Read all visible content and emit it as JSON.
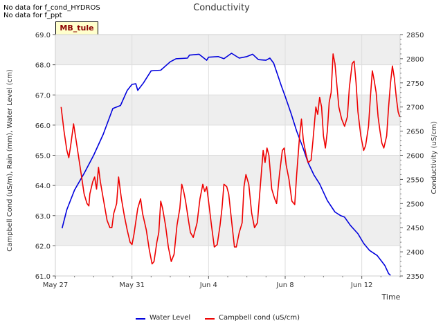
{
  "notices": [
    "No data for f_cond_HYDROS",
    "No data for f_ppt"
  ],
  "site_label": "MB_tule",
  "chart_data": {
    "type": "line",
    "title": "Conductivity",
    "xlabel": "Time",
    "ylabel_left": "Campbell Cond (uS/m), Rain (mm), Water Level (cm)",
    "ylabel_right": "Conductivity (uS/cm)",
    "x_unit": "days since May 27",
    "xlim": [
      0,
      18
    ],
    "x_ticks": [
      {
        "x": 0,
        "label": "May 27"
      },
      {
        "x": 4,
        "label": "May 31"
      },
      {
        "x": 8,
        "label": "Jun 4"
      },
      {
        "x": 12,
        "label": "Jun 8"
      },
      {
        "x": 16,
        "label": "Jun 12"
      }
    ],
    "ylim_left": [
      61.0,
      69.0
    ],
    "y_ticks_left": [
      "61.0",
      "62.0",
      "63.0",
      "64.0",
      "65.0",
      "66.0",
      "67.0",
      "68.0",
      "69.0"
    ],
    "ylim_right": [
      2350,
      2850
    ],
    "y_ticks_right": [
      "2350",
      "2400",
      "2450",
      "2500",
      "2550",
      "2600",
      "2650",
      "2700",
      "2750",
      "2800",
      "2850"
    ],
    "grid": true,
    "legend_position": "bottom",
    "series": [
      {
        "name": "Water Level",
        "axis": "left",
        "color": "#0000dd",
        "points": [
          [
            0.35,
            62.58
          ],
          [
            0.6,
            63.2
          ],
          [
            1.0,
            63.85
          ],
          [
            1.5,
            64.4
          ],
          [
            2.0,
            65.0
          ],
          [
            2.5,
            65.7
          ],
          [
            3.0,
            66.55
          ],
          [
            3.4,
            66.65
          ],
          [
            3.75,
            67.15
          ],
          [
            4.0,
            67.35
          ],
          [
            4.2,
            67.37
          ],
          [
            4.3,
            67.15
          ],
          [
            4.6,
            67.4
          ],
          [
            5.0,
            67.8
          ],
          [
            5.5,
            67.82
          ],
          [
            6.0,
            68.1
          ],
          [
            6.3,
            68.2
          ],
          [
            6.9,
            68.22
          ],
          [
            7.0,
            68.32
          ],
          [
            7.5,
            68.35
          ],
          [
            7.9,
            68.15
          ],
          [
            8.0,
            68.25
          ],
          [
            8.5,
            68.27
          ],
          [
            8.8,
            68.2
          ],
          [
            9.2,
            68.38
          ],
          [
            9.6,
            68.22
          ],
          [
            10.0,
            68.27
          ],
          [
            10.3,
            68.35
          ],
          [
            10.6,
            68.17
          ],
          [
            11.0,
            68.15
          ],
          [
            11.2,
            68.22
          ],
          [
            11.4,
            68.05
          ],
          [
            11.8,
            67.3
          ],
          [
            12.0,
            66.95
          ],
          [
            12.3,
            66.4
          ],
          [
            12.6,
            65.8
          ],
          [
            12.9,
            65.3
          ],
          [
            13.2,
            64.75
          ],
          [
            13.5,
            64.35
          ],
          [
            13.8,
            64.05
          ],
          [
            14.2,
            63.5
          ],
          [
            14.6,
            63.12
          ],
          [
            14.9,
            63.0
          ],
          [
            15.1,
            62.95
          ],
          [
            15.4,
            62.68
          ],
          [
            15.8,
            62.4
          ],
          [
            16.1,
            62.08
          ],
          [
            16.4,
            61.85
          ],
          [
            16.8,
            61.68
          ],
          [
            17.2,
            61.35
          ],
          [
            17.4,
            61.08
          ],
          [
            17.5,
            61.02
          ]
        ]
      },
      {
        "name": "Campbell cond (uS/cm)",
        "axis": "right",
        "color": "#ee0000",
        "points": [
          [
            0.3,
            2700
          ],
          [
            0.45,
            2650
          ],
          [
            0.6,
            2610
          ],
          [
            0.7,
            2595
          ],
          [
            0.8,
            2620
          ],
          [
            0.95,
            2665
          ],
          [
            1.05,
            2640
          ],
          [
            1.2,
            2600
          ],
          [
            1.35,
            2560
          ],
          [
            1.5,
            2520
          ],
          [
            1.65,
            2500
          ],
          [
            1.75,
            2495
          ],
          [
            1.8,
            2520
          ],
          [
            1.95,
            2545
          ],
          [
            2.05,
            2555
          ],
          [
            2.15,
            2530
          ],
          [
            2.25,
            2575
          ],
          [
            2.35,
            2545
          ],
          [
            2.5,
            2510
          ],
          [
            2.7,
            2465
          ],
          [
            2.85,
            2450
          ],
          [
            2.95,
            2450
          ],
          [
            3.05,
            2480
          ],
          [
            3.2,
            2500
          ],
          [
            3.3,
            2555
          ],
          [
            3.45,
            2510
          ],
          [
            3.6,
            2475
          ],
          [
            3.75,
            2445
          ],
          [
            3.9,
            2420
          ],
          [
            4.0,
            2415
          ],
          [
            4.1,
            2435
          ],
          [
            4.3,
            2490
          ],
          [
            4.45,
            2510
          ],
          [
            4.55,
            2480
          ],
          [
            4.75,
            2445
          ],
          [
            4.9,
            2405
          ],
          [
            5.05,
            2375
          ],
          [
            5.15,
            2380
          ],
          [
            5.3,
            2420
          ],
          [
            5.4,
            2440
          ],
          [
            5.5,
            2505
          ],
          [
            5.6,
            2490
          ],
          [
            5.75,
            2455
          ],
          [
            5.9,
            2410
          ],
          [
            6.05,
            2380
          ],
          [
            6.2,
            2395
          ],
          [
            6.35,
            2455
          ],
          [
            6.5,
            2490
          ],
          [
            6.6,
            2540
          ],
          [
            6.7,
            2525
          ],
          [
            6.8,
            2505
          ],
          [
            6.95,
            2465
          ],
          [
            7.05,
            2440
          ],
          [
            7.2,
            2430
          ],
          [
            7.4,
            2460
          ],
          [
            7.55,
            2510
          ],
          [
            7.7,
            2540
          ],
          [
            7.8,
            2525
          ],
          [
            7.9,
            2535
          ],
          [
            8.0,
            2505
          ],
          [
            8.15,
            2455
          ],
          [
            8.3,
            2410
          ],
          [
            8.45,
            2415
          ],
          [
            8.6,
            2455
          ],
          [
            8.7,
            2490
          ],
          [
            8.8,
            2540
          ],
          [
            8.95,
            2535
          ],
          [
            9.05,
            2520
          ],
          [
            9.2,
            2465
          ],
          [
            9.35,
            2410
          ],
          [
            9.45,
            2410
          ],
          [
            9.6,
            2440
          ],
          [
            9.75,
            2460
          ],
          [
            9.85,
            2535
          ],
          [
            9.95,
            2560
          ],
          [
            10.1,
            2540
          ],
          [
            10.25,
            2480
          ],
          [
            10.4,
            2450
          ],
          [
            10.55,
            2460
          ],
          [
            10.7,
            2535
          ],
          [
            10.85,
            2610
          ],
          [
            10.95,
            2585
          ],
          [
            11.05,
            2615
          ],
          [
            11.15,
            2600
          ],
          [
            11.3,
            2530
          ],
          [
            11.45,
            2510
          ],
          [
            11.55,
            2500
          ],
          [
            11.7,
            2560
          ],
          [
            11.85,
            2610
          ],
          [
            11.95,
            2615
          ],
          [
            12.05,
            2580
          ],
          [
            12.2,
            2550
          ],
          [
            12.35,
            2505
          ],
          [
            12.5,
            2498
          ],
          [
            12.6,
            2560
          ],
          [
            12.75,
            2640
          ],
          [
            12.85,
            2675
          ],
          [
            12.95,
            2630
          ],
          [
            13.1,
            2600
          ],
          [
            13.2,
            2585
          ],
          [
            13.35,
            2590
          ],
          [
            13.45,
            2630
          ],
          [
            13.6,
            2700
          ],
          [
            13.7,
            2685
          ],
          [
            13.8,
            2720
          ],
          [
            13.9,
            2700
          ],
          [
            14.0,
            2640
          ],
          [
            14.1,
            2615
          ],
          [
            14.2,
            2650
          ],
          [
            14.3,
            2710
          ],
          [
            14.4,
            2730
          ],
          [
            14.5,
            2810
          ],
          [
            14.6,
            2790
          ],
          [
            14.7,
            2745
          ],
          [
            14.8,
            2700
          ],
          [
            14.95,
            2675
          ],
          [
            15.1,
            2660
          ],
          [
            15.25,
            2680
          ],
          [
            15.35,
            2740
          ],
          [
            15.5,
            2790
          ],
          [
            15.6,
            2795
          ],
          [
            15.7,
            2750
          ],
          [
            15.8,
            2690
          ],
          [
            15.95,
            2640
          ],
          [
            16.1,
            2610
          ],
          [
            16.2,
            2620
          ],
          [
            16.35,
            2660
          ],
          [
            16.45,
            2720
          ],
          [
            16.55,
            2775
          ],
          [
            16.65,
            2755
          ],
          [
            16.75,
            2730
          ],
          [
            16.85,
            2680
          ],
          [
            16.95,
            2650
          ],
          [
            17.05,
            2625
          ],
          [
            17.15,
            2615
          ],
          [
            17.3,
            2640
          ],
          [
            17.4,
            2700
          ],
          [
            17.5,
            2750
          ],
          [
            17.6,
            2785
          ],
          [
            17.7,
            2760
          ],
          [
            17.8,
            2720
          ],
          [
            17.9,
            2690
          ],
          [
            17.98,
            2680
          ]
        ]
      }
    ]
  }
}
